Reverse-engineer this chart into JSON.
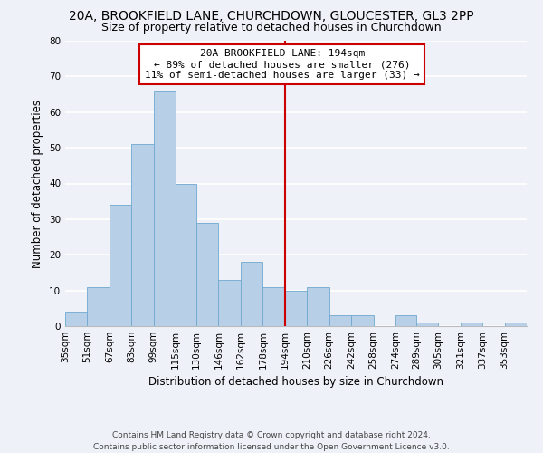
{
  "title": "20A, BROOKFIELD LANE, CHURCHDOWN, GLOUCESTER, GL3 2PP",
  "subtitle": "Size of property relative to detached houses in Churchdown",
  "xlabel": "Distribution of detached houses by size in Churchdown",
  "ylabel": "Number of detached properties",
  "footer_lines": [
    "Contains HM Land Registry data © Crown copyright and database right 2024.",
    "Contains public sector information licensed under the Open Government Licence v3.0."
  ],
  "bin_labels": [
    "35sqm",
    "51sqm",
    "67sqm",
    "83sqm",
    "99sqm",
    "115sqm",
    "130sqm",
    "146sqm",
    "162sqm",
    "178sqm",
    "194sqm",
    "210sqm",
    "226sqm",
    "242sqm",
    "258sqm",
    "274sqm",
    "289sqm",
    "305sqm",
    "321sqm",
    "337sqm",
    "353sqm"
  ],
  "bin_edges": [
    35,
    51,
    67,
    83,
    99,
    115,
    130,
    146,
    162,
    178,
    194,
    210,
    226,
    242,
    258,
    274,
    289,
    305,
    321,
    337,
    353
  ],
  "counts": [
    4,
    11,
    34,
    51,
    66,
    40,
    29,
    13,
    18,
    11,
    10,
    11,
    3,
    3,
    0,
    3,
    1,
    0,
    1,
    0,
    1
  ],
  "bar_color": "#b8cfe8",
  "bar_edge_color": "#6fa8d0",
  "vline_x": 194,
  "vline_color": "#cc0000",
  "annotation_title": "20A BROOKFIELD LANE: 194sqm",
  "annotation_line1": "← 89% of detached houses are smaller (276)",
  "annotation_line2": "11% of semi-detached houses are larger (33) →",
  "annotation_box_edge": "#cc0000",
  "ylim": [
    0,
    80
  ],
  "yticks": [
    0,
    10,
    20,
    30,
    40,
    50,
    60,
    70,
    80
  ],
  "background_color": "#eef2f8",
  "grid_color": "#ffffff",
  "title_fontsize": 10,
  "subtitle_fontsize": 9,
  "axis_label_fontsize": 8.5,
  "tick_fontsize": 7.5,
  "annotation_fontsize": 8,
  "footer_fontsize": 6.5
}
